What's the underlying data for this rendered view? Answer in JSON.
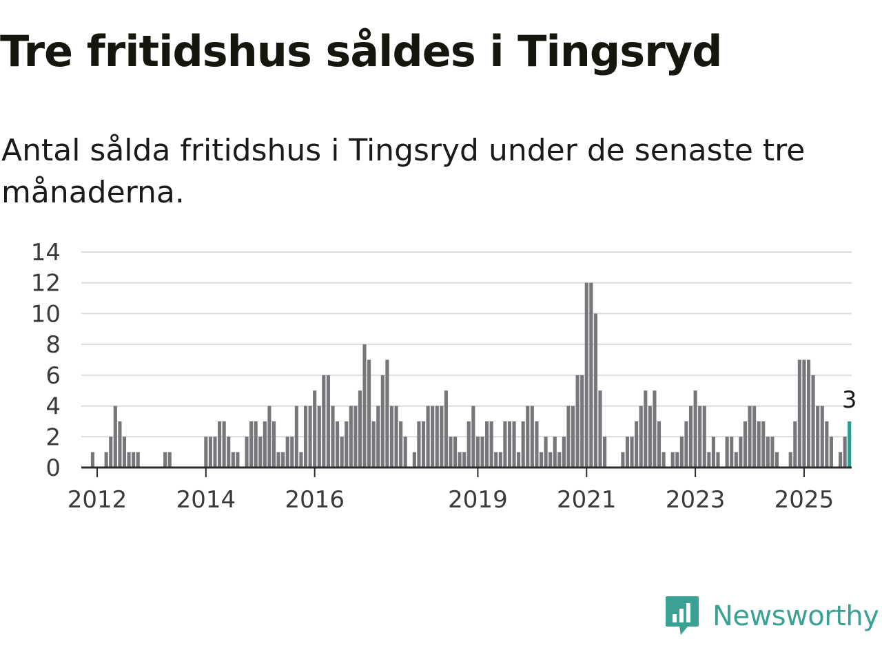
{
  "title": "Tre fritidshus såldes i Tingsryd",
  "subtitle": "Antal sålda fritidshus i Tingsryd under de senaste tre månaderna.",
  "brand": {
    "name": "Newsworthy",
    "icon": "chart-speech-bubble-icon",
    "color": "#3aa193"
  },
  "chart_data": {
    "type": "bar",
    "title": "Tre fritidshus såldes i Tingsryd",
    "subtitle": "Antal sålda fritidshus i Tingsryd under de senaste tre månaderna.",
    "xlabel": "",
    "ylabel": "",
    "ylim": [
      0,
      14
    ],
    "yticks": [
      0,
      2,
      4,
      6,
      8,
      10,
      12,
      14
    ],
    "xticks": [
      "2012",
      "2014",
      "2016",
      "2019",
      "2021",
      "2023",
      "2025"
    ],
    "grid": true,
    "legend": "none",
    "bar_color": "#77767a",
    "highlight_color": "#2a9d8f",
    "highlight_label": "3",
    "start_month": "2011-10",
    "end_month": "2025-06",
    "values": [
      0,
      0,
      1,
      0,
      0,
      1,
      2,
      4,
      3,
      2,
      1,
      1,
      1,
      0,
      0,
      0,
      0,
      0,
      1,
      1,
      0,
      0,
      0,
      0,
      0,
      0,
      0,
      2,
      2,
      2,
      3,
      3,
      2,
      1,
      1,
      0,
      2,
      3,
      3,
      2,
      3,
      4,
      3,
      1,
      1,
      2,
      2,
      4,
      1,
      4,
      4,
      5,
      4,
      6,
      6,
      4,
      3,
      2,
      3,
      4,
      4,
      5,
      8,
      7,
      3,
      4,
      6,
      7,
      4,
      4,
      3,
      2,
      0,
      1,
      3,
      3,
      4,
      4,
      4,
      4,
      5,
      2,
      2,
      1,
      1,
      3,
      4,
      2,
      2,
      3,
      3,
      1,
      1,
      3,
      3,
      3,
      1,
      3,
      4,
      4,
      3,
      1,
      2,
      1,
      2,
      1,
      2,
      4,
      4,
      6,
      6,
      12,
      12,
      10,
      5,
      2,
      0,
      0,
      0,
      1,
      2,
      2,
      3,
      4,
      5,
      4,
      5,
      3,
      1,
      0,
      1,
      1,
      2,
      3,
      4,
      5,
      4,
      4,
      1,
      2,
      1,
      0,
      2,
      2,
      1,
      2,
      3,
      4,
      4,
      3,
      3,
      2,
      2,
      1,
      0,
      0,
      1,
      3,
      7,
      7,
      7,
      6,
      4,
      4,
      3,
      2,
      0,
      1,
      2,
      3
    ]
  }
}
